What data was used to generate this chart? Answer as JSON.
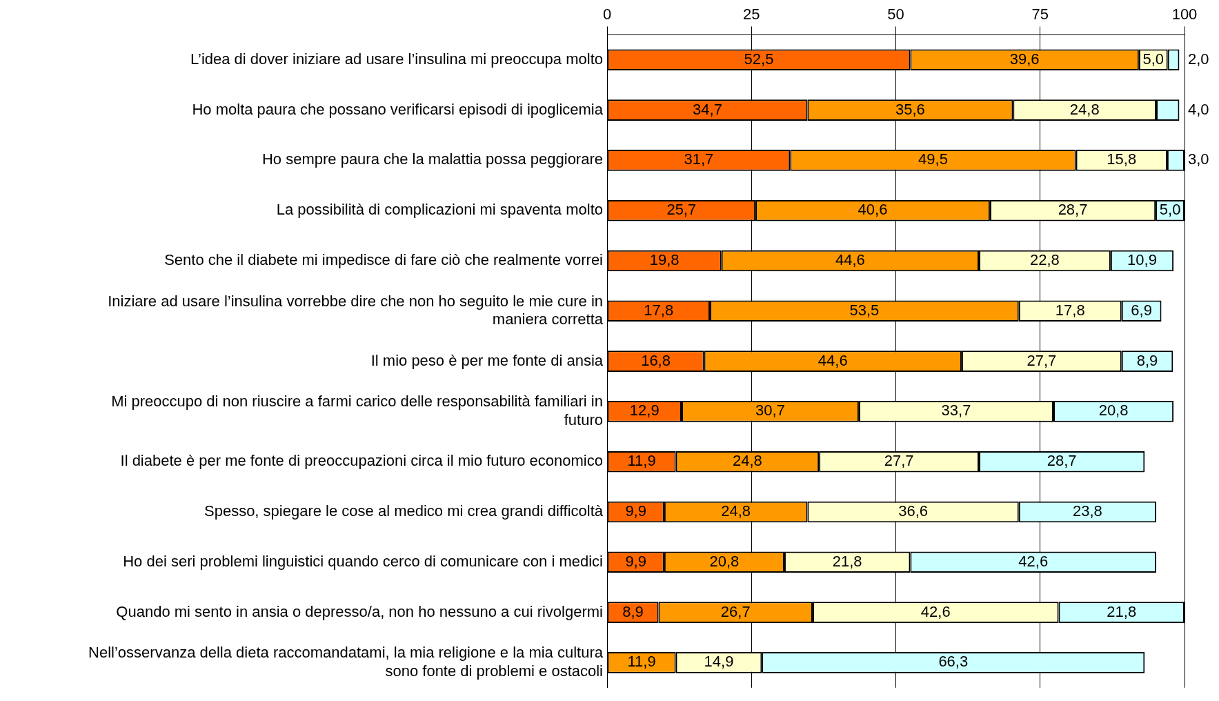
{
  "chart_data": {
    "type": "bar",
    "orientation": "horizontal",
    "stacked": true,
    "categories": [
      "L’idea di dover iniziare ad usare l’insulina mi preoccupa molto",
      "Ho molta paura che possano verificarsi episodi di ipoglicemia",
      "Ho sempre paura che la malattia possa peggiorare",
      "La possibilità di complicazioni mi spaventa molto",
      "Sento che il diabete mi impedisce di fare ciò che realmente vorrei",
      "Iniziare ad usare l’insulina vorrebbe dire che non ho seguito le mie cure in maniera corretta",
      "Il mio peso è per me fonte di ansia",
      "Mi preoccupo di non riuscire a farmi carico delle responsabilità familiari in futuro",
      "Il diabete è per me fonte di preoccupazioni circa il mio futuro economico",
      "Spesso, spiegare le cose al medico mi crea grandi difficoltà",
      "Ho dei seri problemi linguistici quando cerco di comunicare con i medici",
      "Quando mi sento in ansia o depresso/a, non ho nessuno a cui rivolgermi",
      "Nell’osservanza della dieta raccomandatami, la mia religione e la mia cultura sono fonte di problemi e ostacoli"
    ],
    "series": [
      {
        "color": "#ff6600",
        "values": [
          52.5,
          34.7,
          31.7,
          25.7,
          19.8,
          17.8,
          16.8,
          12.9,
          11.9,
          9.9,
          9.9,
          8.9,
          null
        ],
        "value_labels": [
          "52,5",
          "34,7",
          "31,7",
          "25,7",
          "19,8",
          "17,8",
          "16,8",
          "12,9",
          "11,9",
          "9,9",
          "9,9",
          "8,9",
          null
        ]
      },
      {
        "color": "#ff9900",
        "values": [
          39.6,
          35.6,
          49.5,
          40.6,
          44.6,
          53.5,
          44.6,
          30.7,
          24.8,
          24.8,
          20.8,
          26.7,
          11.9
        ],
        "value_labels": [
          "39,6",
          "35,6",
          "49,5",
          "40,6",
          "44,6",
          "53,5",
          "44,6",
          "30,7",
          "24,8",
          "24,8",
          "20,8",
          "26,7",
          "11,9"
        ]
      },
      {
        "color": "#ffffcc",
        "values": [
          5.0,
          24.8,
          15.8,
          28.7,
          22.8,
          17.8,
          27.7,
          33.7,
          27.7,
          36.6,
          21.8,
          42.6,
          14.9
        ],
        "value_labels": [
          "5,0",
          "24,8",
          "15,8",
          "28,7",
          "22,8",
          "17,8",
          "27,7",
          "33,7",
          "27,7",
          "36,6",
          "21,8",
          "42,6",
          "14,9"
        ]
      },
      {
        "color": "#ccffff",
        "values": [
          2.0,
          4.0,
          3.0,
          5.0,
          10.9,
          6.9,
          8.9,
          20.8,
          28.7,
          23.8,
          42.6,
          21.8,
          66.3
        ],
        "value_labels": [
          "2,0",
          "4,0",
          "3,0",
          "5,0",
          "10,9",
          "6,9",
          "8,9",
          "20,8",
          "28,7",
          "23,8",
          "42,6",
          "21,8",
          "66,3"
        ]
      }
    ],
    "xlim": [
      0,
      100
    ],
    "xticks": [
      0,
      25,
      50,
      75,
      100
    ],
    "grid": "x",
    "legend": false
  }
}
